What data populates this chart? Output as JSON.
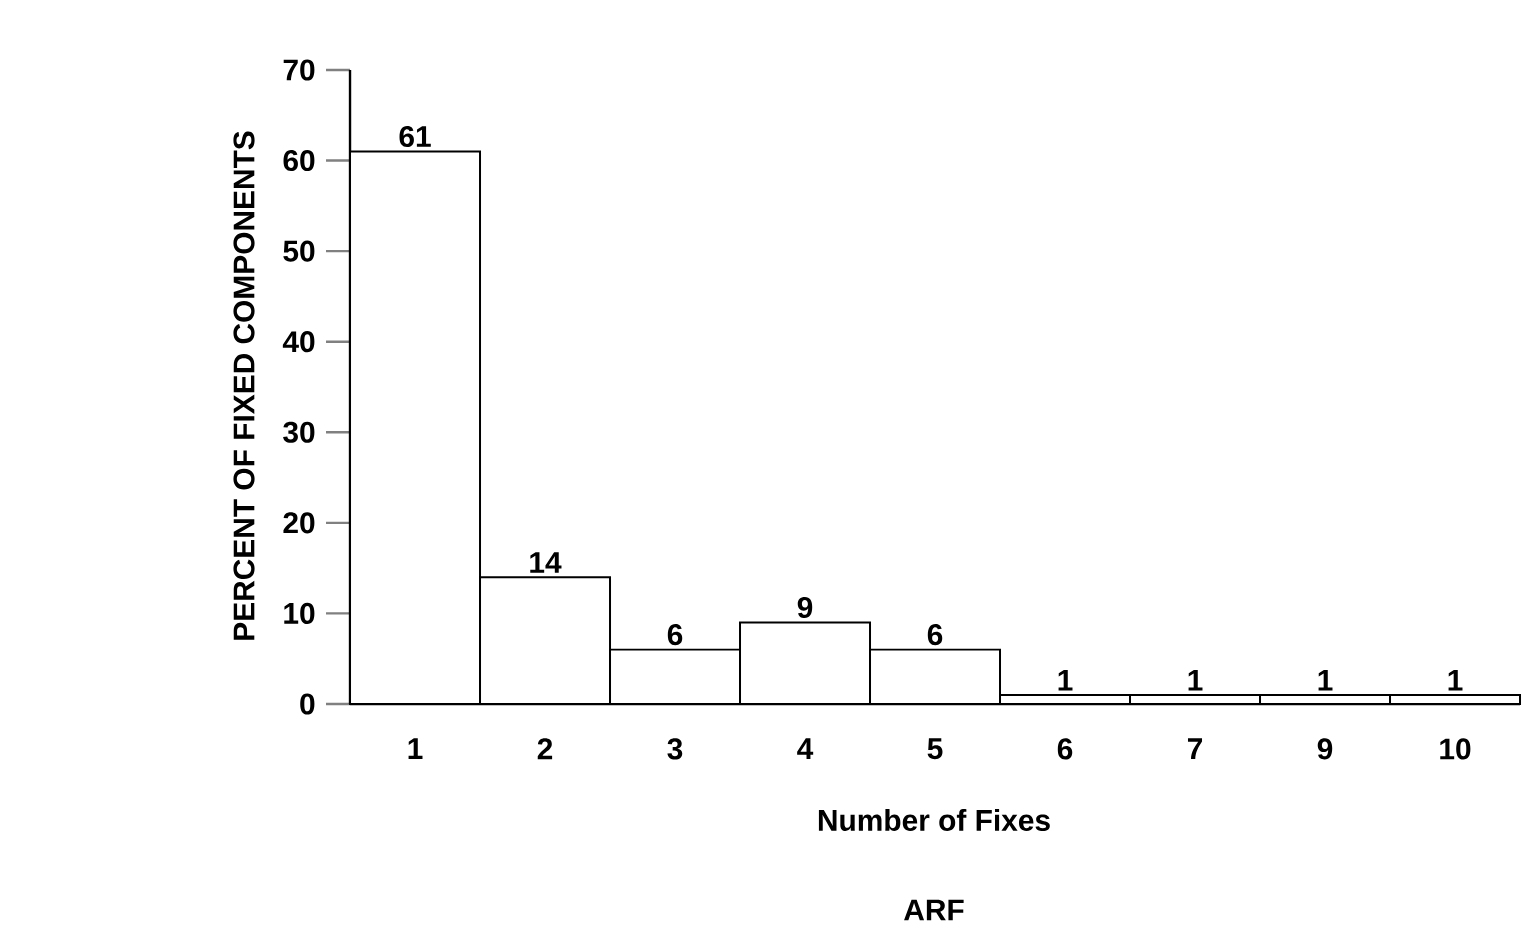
{
  "chart_data": {
    "type": "bar",
    "title": "ARF",
    "xlabel": "Number of Fixes",
    "ylabel": "PERCENT OF FIXED COMPONENTS",
    "categories": [
      "1",
      "2",
      "3",
      "4",
      "5",
      "6",
      "7",
      "9",
      "10"
    ],
    "values": [
      61,
      14,
      6,
      9,
      6,
      1,
      1,
      1,
      1
    ],
    "color": "#ffffff",
    "ylim": [
      0,
      70
    ],
    "yticks": [
      0,
      10,
      20,
      30,
      40,
      50,
      60,
      70
    ],
    "data_labels": true,
    "grid": false
  }
}
